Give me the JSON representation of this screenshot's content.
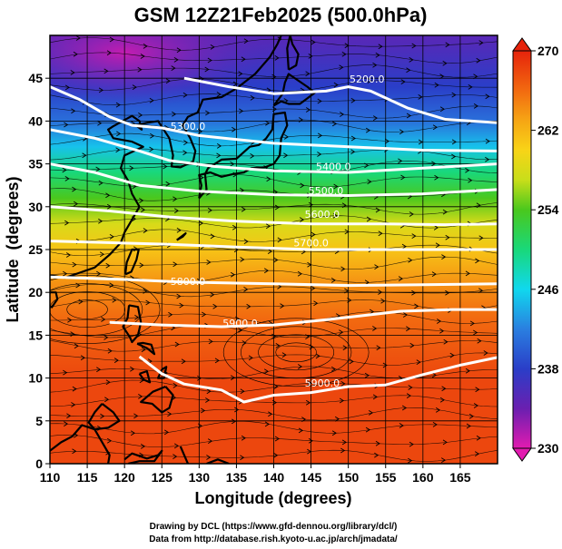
{
  "page": {
    "title": "GSM 12Z21Feb2025 (500.0hPa)",
    "credit_drawing": "Drawing by DCL (https://www.gfd-dennou.org/library/dcl/)",
    "credit_data": "Data from http://database.rish.kyoto-u.ac.jp/arch/jmadata/"
  },
  "chart_data": {
    "type": "heatmap",
    "title": "GSM 12Z21Feb2025 (500.0hPa)",
    "xlabel": "Longitude (degrees)",
    "ylabel": "Latitude  (degrees)",
    "xlim": [
      110,
      170
    ],
    "ylim": [
      0,
      50
    ],
    "xticks": [
      110,
      115,
      120,
      125,
      130,
      135,
      140,
      145,
      150,
      155,
      160,
      165
    ],
    "yticks": [
      0,
      5,
      10,
      15,
      20,
      25,
      30,
      35,
      40,
      45
    ],
    "grid": true,
    "shading": {
      "variable": "temperature (K)",
      "colorbar_range": [
        230,
        270
      ],
      "colorbar_ticks": [
        230,
        238,
        246,
        254,
        262,
        270
      ],
      "color_stops": [
        {
          "value": 230,
          "color": "#e21bb0"
        },
        {
          "value": 234,
          "color": "#6a1fb0"
        },
        {
          "value": 238,
          "color": "#2a3ec8"
        },
        {
          "value": 242,
          "color": "#2a7fe0"
        },
        {
          "value": 246,
          "color": "#10d8ee"
        },
        {
          "value": 250,
          "color": "#19d87a"
        },
        {
          "value": 254,
          "color": "#4ac81d"
        },
        {
          "value": 257,
          "color": "#c8de1a"
        },
        {
          "value": 260,
          "color": "#f8d417"
        },
        {
          "value": 263,
          "color": "#f6a514"
        },
        {
          "value": 266,
          "color": "#f26a10"
        },
        {
          "value": 270,
          "color": "#e6230b"
        }
      ],
      "zonal_temperature_profile": [
        {
          "lat": 0,
          "value": 268
        },
        {
          "lat": 10,
          "value": 268
        },
        {
          "lat": 17,
          "value": 266
        },
        {
          "lat": 21,
          "value": 264
        },
        {
          "lat": 25,
          "value": 261
        },
        {
          "lat": 28,
          "value": 258
        },
        {
          "lat": 31,
          "value": 254
        },
        {
          "lat": 34,
          "value": 250
        },
        {
          "lat": 37,
          "value": 245
        },
        {
          "lat": 40,
          "value": 241
        },
        {
          "lat": 44,
          "value": 238
        },
        {
          "lat": 50,
          "value": 235
        }
      ],
      "cold_core": {
        "lon": 120,
        "lat": 48,
        "value": 231
      }
    },
    "height_contours": [
      {
        "label": "5200.0",
        "points": [
          [
            128,
            45
          ],
          [
            134,
            44
          ],
          [
            140,
            43.2
          ],
          [
            147,
            43.5
          ],
          [
            150,
            44
          ],
          [
            153,
            43.5
          ],
          [
            158,
            41.5
          ],
          [
            163,
            40.2
          ],
          [
            170,
            39.8
          ]
        ]
      },
      {
        "label": "5300.0",
        "points": [
          [
            110,
            44
          ],
          [
            114,
            42.5
          ],
          [
            118,
            40.5
          ],
          [
            121,
            39.5
          ],
          [
            125,
            39.2
          ],
          [
            130,
            38.3
          ],
          [
            140,
            37.4
          ],
          [
            150,
            37
          ],
          [
            160,
            36.6
          ],
          [
            170,
            36.5
          ]
        ]
      },
      {
        "label": "5400.0",
        "points": [
          [
            110,
            39
          ],
          [
            116,
            38
          ],
          [
            122,
            36.5
          ],
          [
            126,
            35.4
          ],
          [
            132,
            34.7
          ],
          [
            140,
            34.2
          ],
          [
            150,
            34
          ],
          [
            160,
            34.5
          ],
          [
            170,
            35
          ]
        ]
      },
      {
        "label": "5500.0",
        "points": [
          [
            110,
            35
          ],
          [
            116,
            34
          ],
          [
            122,
            32.5
          ],
          [
            130,
            31.8
          ],
          [
            140,
            31.4
          ],
          [
            150,
            31.3
          ],
          [
            160,
            31.5
          ],
          [
            170,
            32
          ]
        ]
      },
      {
        "label": "5600.0",
        "points": [
          [
            110,
            30
          ],
          [
            118,
            29.5
          ],
          [
            126,
            28.8
          ],
          [
            135,
            28.3
          ],
          [
            145,
            28
          ],
          [
            155,
            28
          ],
          [
            163,
            27.9
          ],
          [
            170,
            28
          ]
        ]
      },
      {
        "label": "5700.0",
        "points": [
          [
            110,
            26
          ],
          [
            118,
            25.8
          ],
          [
            126,
            25.6
          ],
          [
            135,
            25.3
          ],
          [
            145,
            25
          ],
          [
            155,
            25
          ],
          [
            163,
            25
          ],
          [
            170,
            25
          ]
        ]
      },
      {
        "label": "5800.0",
        "points": [
          [
            110,
            21.8
          ],
          [
            120,
            21.5
          ],
          [
            128,
            21.2
          ],
          [
            140,
            21
          ],
          [
            150,
            20.8
          ],
          [
            160,
            20.9
          ],
          [
            170,
            21
          ]
        ]
      },
      {
        "label": "5900.0",
        "points": [
          [
            118,
            16.5
          ],
          [
            125,
            16.2
          ],
          [
            133,
            16
          ],
          [
            140,
            16.2
          ],
          [
            147,
            16.8
          ],
          [
            150,
            17.1
          ],
          [
            157,
            17.8
          ],
          [
            164,
            18
          ],
          [
            170,
            18
          ]
        ]
      },
      {
        "label": "5900.0",
        "points": [
          [
            122,
            12.5
          ],
          [
            125,
            10.5
          ],
          [
            128,
            9.3
          ],
          [
            133,
            8.6
          ],
          [
            136,
            7.2
          ],
          [
            140,
            8
          ],
          [
            145,
            8.3
          ],
          [
            150,
            9
          ],
          [
            155,
            9.2
          ],
          [
            160,
            10.4
          ],
          [
            165,
            11.5
          ],
          [
            170,
            12.4
          ]
        ]
      }
    ],
    "annotations": [
      {
        "text": "5200.0",
        "lon": 152.5,
        "lat": 44.8
      },
      {
        "text": "5300.0",
        "lon": 128.5,
        "lat": 39.3
      },
      {
        "text": "5400.0",
        "lon": 148,
        "lat": 34.6
      },
      {
        "text": "5500.0",
        "lon": 147,
        "lat": 31.8
      },
      {
        "text": "5600.0",
        "lon": 146.5,
        "lat": 29
      },
      {
        "text": "5700.0",
        "lon": 145,
        "lat": 25.7
      },
      {
        "text": "5800.0",
        "lon": 128.5,
        "lat": 21.2
      },
      {
        "text": "5900.0",
        "lon": 135.5,
        "lat": 16.3
      },
      {
        "text": "5900.0",
        "lon": 146.5,
        "lat": 9.3
      }
    ],
    "wind_streamlines": {
      "dominant_direction": "westerly",
      "features": [
        {
          "kind": "cyclonic circulation",
          "lon": 115,
          "lat": 18
        },
        {
          "kind": "anticyclonic circulation",
          "lon": 143,
          "lat": 13
        }
      ]
    },
    "coastline": "East Asia / western Pacific"
  }
}
